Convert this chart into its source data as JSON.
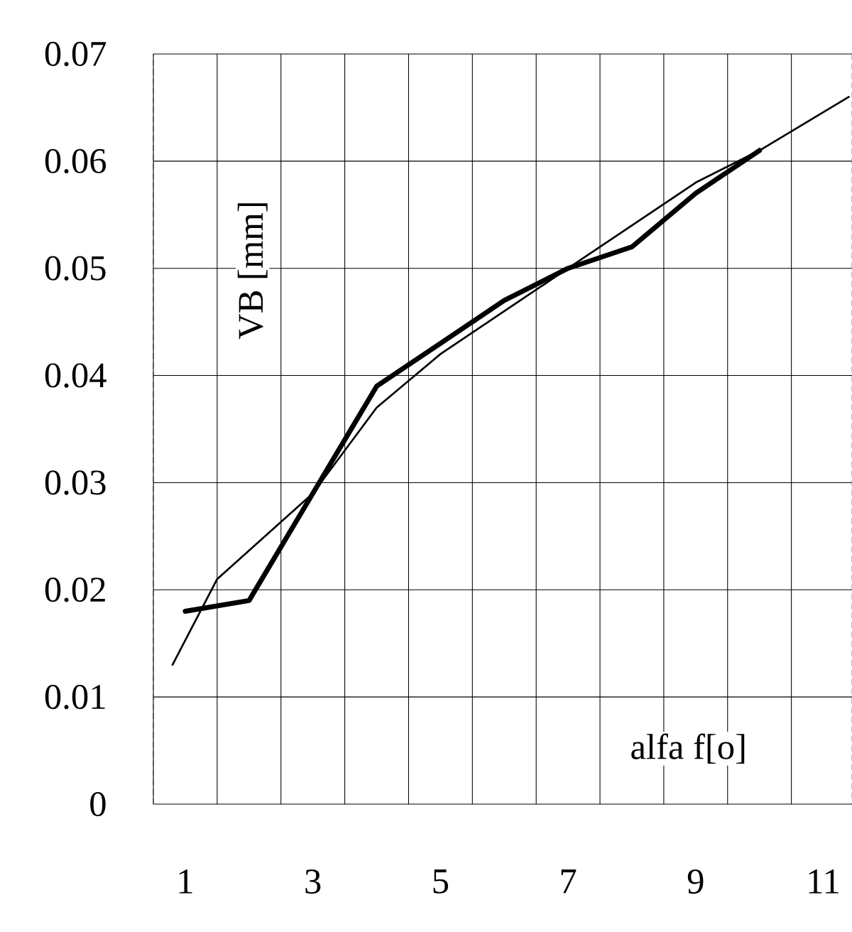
{
  "chart_data": {
    "type": "line",
    "xlabel": "alfa f[o]",
    "ylabel": "VB [mm]",
    "xlim": [
      0.5,
      11.45
    ],
    "ylim": [
      0,
      0.07
    ],
    "xticks": [
      {
        "value": 0.5,
        "label": null
      },
      1,
      {
        "value": 1.5,
        "label": null
      },
      {
        "value": 2.5,
        "label": null
      },
      3,
      {
        "value": 3.5,
        "label": null
      },
      {
        "value": 4.5,
        "label": null
      },
      5,
      {
        "value": 5.5,
        "label": null
      },
      {
        "value": 6.5,
        "label": null
      },
      7,
      {
        "value": 7.5,
        "label": null
      },
      {
        "value": 8.5,
        "label": null
      },
      9,
      {
        "value": 9.5,
        "label": null
      },
      {
        "value": 10.5,
        "label": null
      },
      11
    ],
    "yticks": [
      0,
      0.01,
      0.02,
      0.03,
      0.04,
      0.05,
      0.06,
      0.07
    ],
    "grid": true,
    "marker": "none",
    "line_style": "solid",
    "series": [
      {
        "color": "#000000",
        "x": [
          1,
          2,
          3,
          4,
          5,
          6,
          7,
          8,
          9,
          10
        ],
        "values": [
          0.018,
          0.019,
          0.029,
          0.039,
          0.043,
          0.047,
          0.05,
          0.052,
          0.057,
          0.061
        ]
      },
      {
        "color": "#000000",
        "x": [
          0.8,
          1.5,
          3,
          4,
          5,
          7,
          8,
          9,
          10,
          11.4
        ],
        "values": [
          0.013,
          0.021,
          0.029,
          0.037,
          0.042,
          0.05,
          0.054,
          0.058,
          0.061,
          0.066
        ]
      }
    ]
  }
}
